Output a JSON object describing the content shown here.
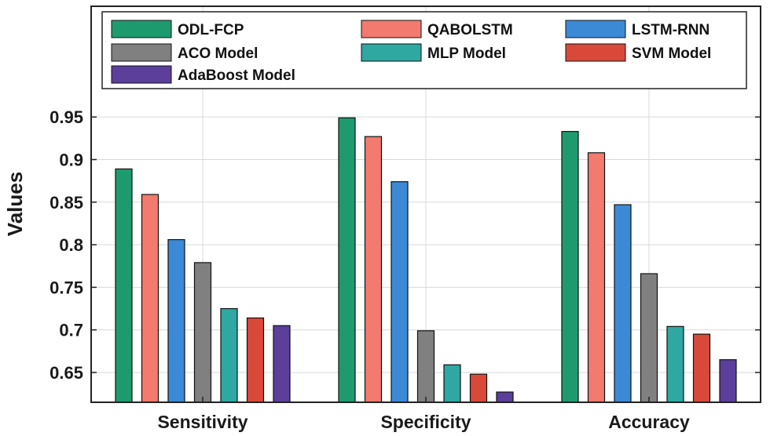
{
  "chart_data": {
    "type": "bar",
    "title": "",
    "xlabel": "",
    "ylabel": "Values",
    "ylim": [
      0.615,
      1.08
    ],
    "yticks": [
      0.65,
      0.7,
      0.75,
      0.8,
      0.85,
      0.9,
      0.95
    ],
    "ytick_labels": [
      "0.65",
      "0.7",
      "0.75",
      "0.8",
      "0.85",
      "0.9",
      "0.95"
    ],
    "grid": true,
    "legend_position": "top",
    "categories": [
      "Sensitivity",
      "Specificity",
      "Accuracy"
    ],
    "series": [
      {
        "name": "ODL-FCP",
        "color": "#1e9b6e",
        "values": [
          0.889,
          0.949,
          0.933
        ]
      },
      {
        "name": "QABOLSTM",
        "color": "#f27a6e",
        "values": [
          0.859,
          0.927,
          0.908
        ]
      },
      {
        "name": "LSTM-RNN",
        "color": "#3c8ad6",
        "values": [
          0.806,
          0.874,
          0.847
        ]
      },
      {
        "name": "ACO Model",
        "color": "#808080",
        "values": [
          0.779,
          0.699,
          0.766
        ]
      },
      {
        "name": "MLP Model",
        "color": "#2ea8a0",
        "values": [
          0.725,
          0.659,
          0.704
        ]
      },
      {
        "name": "SVM Model",
        "color": "#d9493a",
        "values": [
          0.714,
          0.648,
          0.695
        ]
      },
      {
        "name": "AdaBoost Model",
        "color": "#5b3f9a",
        "values": [
          0.705,
          0.627,
          0.665
        ]
      }
    ]
  }
}
